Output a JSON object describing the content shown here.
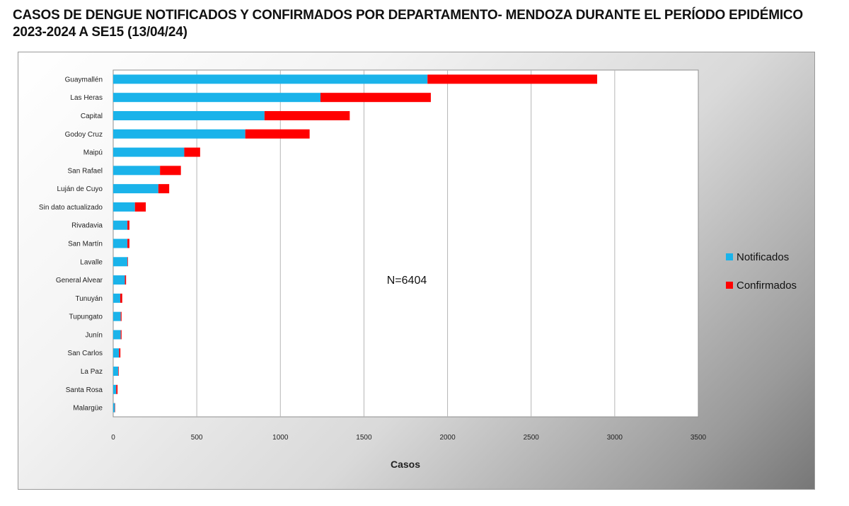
{
  "title": "CASOS DE DENGUE NOTIFICADOS Y CONFIRMADOS POR DEPARTAMENTO- MENDOZA DURANTE EL  PERÍODO EPIDÉMICO 2023-2024 A SE15 (13/04/24)",
  "annotation": "N=6404",
  "chart_data": {
    "type": "bar",
    "orientation": "horizontal",
    "stacked": true,
    "title": "CASOS DE DENGUE NOTIFICADOS Y CONFIRMADOS POR DEPARTAMENTO- MENDOZA DURANTE EL  PERÍODO EPIDÉMICO 2023-2024 A SE15 (13/04/24)",
    "xlabel": "Casos",
    "ylabel": "",
    "xlim": [
      0,
      3500
    ],
    "xticks": [
      0,
      500,
      1000,
      1500,
      2000,
      2500,
      3000,
      3500
    ],
    "grid": true,
    "legend_position": "right",
    "categories": [
      "Guaymallén",
      "Las Heras",
      "Capital",
      "Godoy Cruz",
      "Maipú",
      "San Rafael",
      "Luján de Cuyo",
      "Sin dato actualizado",
      "Rivadavia",
      "San Martín",
      "Lavalle",
      "General Alvear",
      "Tunuyán",
      "Tupungato",
      "Junín",
      "San Carlos",
      "La Paz",
      "Santa Rosa",
      "Malargüe"
    ],
    "series": [
      {
        "name": "Notificados",
        "color": "#1ab3ea",
        "values": [
          1880,
          1240,
          905,
          790,
          425,
          280,
          270,
          130,
          85,
          85,
          85,
          70,
          42,
          45,
          45,
          35,
          30,
          18,
          10
        ]
      },
      {
        "name": "Confirmados",
        "color": "#ff0000",
        "values": [
          1015,
          660,
          510,
          385,
          95,
          125,
          65,
          65,
          12,
          12,
          3,
          7,
          12,
          5,
          5,
          8,
          3,
          8,
          2
        ]
      }
    ]
  }
}
